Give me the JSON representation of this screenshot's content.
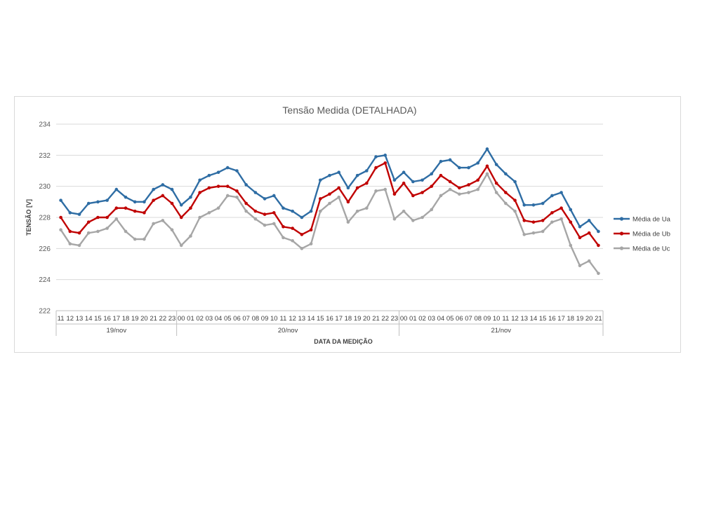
{
  "chart_data": {
    "type": "line",
    "title": "Tensão Medida (DETALHADA)",
    "xlabel": "DATA DA MEDIÇÃO",
    "ylabel": "TENSÃO [V]",
    "ylim": [
      222,
      234
    ],
    "yticks": [
      222,
      224,
      226,
      228,
      230,
      232,
      234
    ],
    "grid": true,
    "legend_position": "right",
    "x_hours": [
      "11",
      "12",
      "13",
      "14",
      "15",
      "16",
      "17",
      "18",
      "19",
      "20",
      "21",
      "22",
      "23",
      "00",
      "01",
      "02",
      "03",
      "04",
      "05",
      "06",
      "07",
      "08",
      "09",
      "10",
      "11",
      "12",
      "13",
      "14",
      "15",
      "16",
      "17",
      "18",
      "19",
      "20",
      "21",
      "22",
      "23",
      "00",
      "01",
      "02",
      "03",
      "04",
      "05",
      "06",
      "07",
      "08",
      "09",
      "10",
      "11",
      "12",
      "13",
      "14",
      "15",
      "16",
      "17",
      "18",
      "19",
      "20",
      "21"
    ],
    "x_groups": [
      {
        "label": "19/nov",
        "count": 13
      },
      {
        "label": "20/nov",
        "count": 24
      },
      {
        "label": "21/nov",
        "count": 22
      }
    ],
    "series": [
      {
        "name": "Média de Ua",
        "color": "#2e6da4",
        "values": [
          229.1,
          228.3,
          228.2,
          228.9,
          229.0,
          229.1,
          229.8,
          229.3,
          229.0,
          229.0,
          229.8,
          230.1,
          229.8,
          228.8,
          229.3,
          230.4,
          230.7,
          230.9,
          231.2,
          231.0,
          230.1,
          229.6,
          229.2,
          229.4,
          228.6,
          228.4,
          228.0,
          228.4,
          230.4,
          230.7,
          230.9,
          229.9,
          230.7,
          231.0,
          231.9,
          232.0,
          230.4,
          230.9,
          230.3,
          230.4,
          230.8,
          231.6,
          231.7,
          231.2,
          231.2,
          231.5,
          232.4,
          231.4,
          230.8,
          230.3,
          228.8,
          228.8,
          228.9,
          229.4,
          229.6,
          228.5,
          227.4,
          227.8,
          227.1
        ]
      },
      {
        "name": "Média de Ub",
        "color": "#c00000",
        "values": [
          228.0,
          227.1,
          227.0,
          227.7,
          228.0,
          228.0,
          228.6,
          228.6,
          228.4,
          228.3,
          229.1,
          229.4,
          228.9,
          228.0,
          228.6,
          229.6,
          229.9,
          230.0,
          230.0,
          229.7,
          228.9,
          228.4,
          228.2,
          228.3,
          227.4,
          227.3,
          226.9,
          227.2,
          229.2,
          229.5,
          229.9,
          229.0,
          229.9,
          230.2,
          231.2,
          231.5,
          229.5,
          230.2,
          229.4,
          229.6,
          230.0,
          230.7,
          230.3,
          229.9,
          230.1,
          230.4,
          231.3,
          230.2,
          229.6,
          229.1,
          227.8,
          227.7,
          227.8,
          228.3,
          228.6,
          227.7,
          226.7,
          227.0,
          226.2
        ]
      },
      {
        "name": "Média de Uc",
        "color": "#a6a6a6",
        "values": [
          227.2,
          226.3,
          226.2,
          227.0,
          227.1,
          227.3,
          227.9,
          227.1,
          226.6,
          226.6,
          227.6,
          227.8,
          227.2,
          226.2,
          226.8,
          228.0,
          228.3,
          228.6,
          229.4,
          229.3,
          228.4,
          227.9,
          227.5,
          227.6,
          226.7,
          226.5,
          226.0,
          226.3,
          228.4,
          228.9,
          229.3,
          227.7,
          228.4,
          228.6,
          229.7,
          229.8,
          227.9,
          228.4,
          227.8,
          228.0,
          228.5,
          229.4,
          229.8,
          229.5,
          229.6,
          229.8,
          230.8,
          229.6,
          228.9,
          228.4,
          226.9,
          227.0,
          227.1,
          227.7,
          227.9,
          226.2,
          224.9,
          225.2,
          224.4
        ]
      }
    ]
  }
}
